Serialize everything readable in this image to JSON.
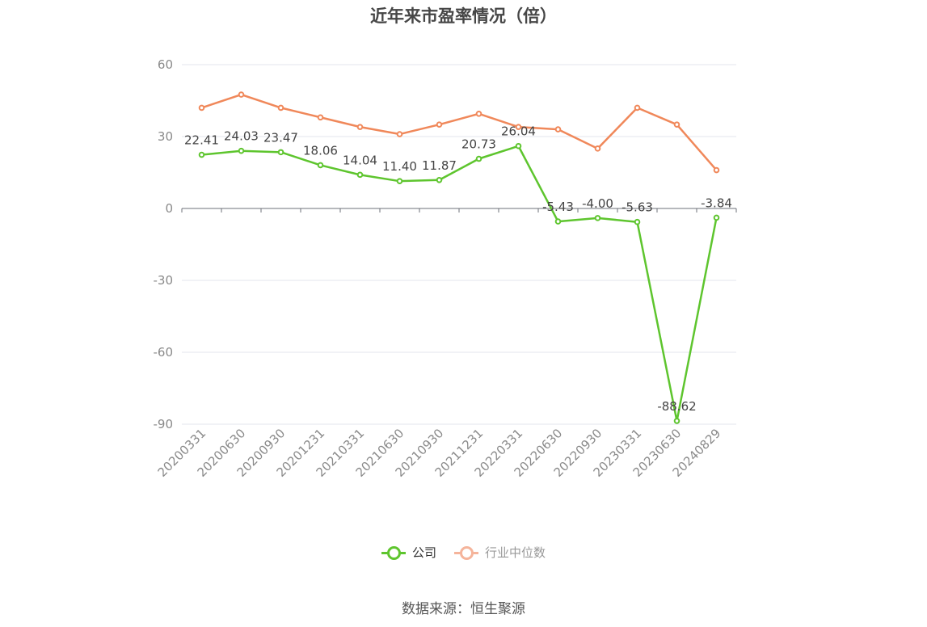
{
  "title": "近年来市盈率情况（倍）",
  "source": "数据来源：恒生聚源",
  "chart_data": {
    "type": "line",
    "title": "近年来市盈率情况（倍）",
    "categories": [
      "20200331",
      "20200630",
      "20200930",
      "20201231",
      "20210331",
      "20210630",
      "20210930",
      "20211231",
      "20220331",
      "20220630",
      "20220930",
      "20230331",
      "20230630",
      "20240829"
    ],
    "ylim": [
      -90,
      60
    ],
    "yticks": [
      60,
      30,
      0,
      -30,
      -60,
      -90
    ],
    "grid": true,
    "legend_position": "bottom",
    "series": [
      {
        "name": "公司",
        "color": "#5ec52e",
        "values": [
          22.41,
          24.03,
          23.47,
          18.06,
          14.04,
          11.4,
          11.87,
          20.73,
          26.04,
          -5.43,
          -4.0,
          -5.63,
          -88.62,
          -3.84
        ],
        "labels": [
          "22.41",
          "24.03",
          "23.47",
          "18.06",
          "14.04",
          "11.40",
          "11.87",
          "20.73",
          "26.04",
          "-5.43",
          "-4.00",
          "-5.63",
          "-88.62",
          "-3.84"
        ]
      },
      {
        "name": "行业中位数",
        "color": "#f0885a",
        "values": [
          42,
          47.5,
          42,
          38,
          34,
          31,
          35,
          39.5,
          34,
          33,
          25,
          42,
          35,
          16
        ]
      }
    ]
  },
  "legend": {
    "company": {
      "label": "公司",
      "color": "#5ec52e"
    },
    "industry": {
      "label": "行业中位数",
      "color": "#f5b49b"
    }
  }
}
